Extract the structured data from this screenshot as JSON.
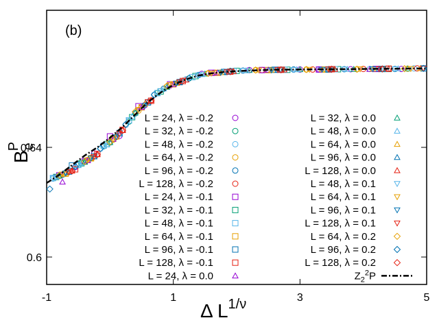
{
  "chart_data": {
    "type": "scatter",
    "panel_label": "(b)",
    "xlabel": "Δ L",
    "xlabel_sup": "1/ν",
    "ylabel": "B",
    "ylabel_sub": "e",
    "ylabel_sup": "P",
    "xlim": [
      -1,
      5
    ],
    "ylim": [
      0.59,
      0.69
    ],
    "x_ticks": [
      -1,
      1,
      3,
      5
    ],
    "x_tick_labels": [
      "-1",
      "1",
      "3",
      "5"
    ],
    "y_ticks": [
      0.6,
      0.64
    ],
    "y_tick_labels": [
      "0.6",
      "0.64"
    ],
    "grid": false,
    "legend_placement": "lower-right",
    "colors": {
      "purple": "#9400d3",
      "green": "#009e73",
      "cyan": "#56b4e9",
      "orange": "#e69f00",
      "blue": "#0072b2",
      "red": "#e51e10"
    },
    "series": [
      {
        "name": "L = 24, λ = -0.2",
        "marker": "circle",
        "color": "#9400d3",
        "x": [
          -0.85,
          -0.55,
          -0.25,
          0.15,
          0.55,
          0.95,
          1.45,
          2.2,
          3.0,
          3.8,
          4.6
        ],
        "y": [
          0.6292,
          0.6328,
          0.6378,
          0.6442,
          0.6554,
          0.6626,
          0.6668,
          0.6682,
          0.6684,
          0.6685,
          0.6686
        ]
      },
      {
        "name": "L = 32, λ = -0.2",
        "marker": "circle",
        "color": "#009e73",
        "x": [
          -0.8,
          -0.45,
          -0.1,
          0.3,
          0.75,
          1.25,
          1.9,
          2.7,
          3.5,
          4.3
        ],
        "y": [
          0.6296,
          0.6342,
          0.6404,
          0.6494,
          0.6598,
          0.6652,
          0.6678,
          0.6683,
          0.6685,
          0.6686
        ]
      },
      {
        "name": "L = 48, λ = -0.2",
        "marker": "circle",
        "color": "#56b4e9",
        "x": [
          -0.9,
          -0.5,
          -0.15,
          0.25,
          0.7,
          1.2,
          1.8,
          2.5,
          3.3,
          4.1,
          4.8
        ],
        "y": [
          0.6286,
          0.6335,
          0.6395,
          0.6482,
          0.6592,
          0.6648,
          0.6676,
          0.6682,
          0.6684,
          0.6686,
          0.6688
        ]
      },
      {
        "name": "L = 64, λ = -0.2",
        "marker": "circle",
        "color": "#e69f00",
        "x": [
          -0.7,
          -0.35,
          0.05,
          0.45,
          0.9,
          1.55,
          2.3,
          3.1,
          3.9,
          4.7
        ],
        "y": [
          0.6306,
          0.6354,
          0.6428,
          0.6534,
          0.6622,
          0.667,
          0.6682,
          0.6684,
          0.6685,
          0.6687
        ]
      },
      {
        "name": "L = 96, λ = -0.2",
        "marker": "circle",
        "color": "#0072b2",
        "x": [
          -0.75,
          -0.4,
          0.0,
          0.4,
          0.85,
          1.4,
          2.1,
          2.9,
          3.7,
          4.5
        ],
        "y": [
          0.63,
          0.6348,
          0.6418,
          0.6524,
          0.6614,
          0.6664,
          0.668,
          0.6684,
          0.6685,
          0.6686
        ]
      },
      {
        "name": "L = 128, λ = -0.2",
        "marker": "circle",
        "color": "#e51e10",
        "x": [
          -0.65,
          -0.3,
          0.1,
          0.5,
          1.0,
          1.65,
          2.4,
          3.2,
          4.0,
          4.85
        ],
        "y": [
          0.631,
          0.6362,
          0.6438,
          0.6546,
          0.663,
          0.6672,
          0.6682,
          0.6684,
          0.6686,
          0.6688
        ]
      },
      {
        "name": "L = 24, λ = -0.1",
        "marker": "square",
        "color": "#9400d3",
        "x": [
          -0.8,
          -0.4,
          0.0,
          0.45,
          0.95,
          1.6,
          2.4,
          3.3,
          4.2
        ],
        "y": [
          0.6298,
          0.635,
          0.644,
          0.655,
          0.663,
          0.6672,
          0.6682,
          0.6684,
          0.6686
        ]
      },
      {
        "name": "L = 32, λ = -0.1",
        "marker": "square",
        "color": "#009e73",
        "x": [
          -0.85,
          -0.45,
          -0.05,
          0.35,
          0.8,
          1.35,
          2.0,
          2.8,
          3.6,
          4.4
        ],
        "y": [
          0.6292,
          0.6342,
          0.6412,
          0.651,
          0.6604,
          0.666,
          0.6679,
          0.6683,
          0.6685,
          0.6686
        ]
      },
      {
        "name": "L = 48, λ = -0.1",
        "marker": "square",
        "color": "#56b4e9",
        "x": [
          -0.9,
          -0.5,
          -0.1,
          0.3,
          0.75,
          1.3,
          1.95,
          2.75,
          3.55,
          4.35
        ],
        "y": [
          0.6288,
          0.6336,
          0.6406,
          0.6498,
          0.6598,
          0.6656,
          0.6678,
          0.6683,
          0.6685,
          0.6686
        ]
      },
      {
        "name": "L = 64, λ = -0.1",
        "marker": "square",
        "color": "#e69f00",
        "x": [
          -0.7,
          -0.3,
          0.05,
          0.5,
          1.0,
          1.7,
          2.5,
          3.4,
          4.3
        ],
        "y": [
          0.6304,
          0.636,
          0.6432,
          0.6546,
          0.663,
          0.6672,
          0.6682,
          0.6684,
          0.6686
        ]
      },
      {
        "name": "L = 96, λ = -0.1",
        "marker": "square",
        "color": "#0072b2",
        "x": [
          -0.6,
          -0.25,
          0.15,
          0.6,
          1.1,
          1.8,
          2.6,
          3.45,
          4.3,
          4.95
        ],
        "y": [
          0.6334,
          0.6368,
          0.6452,
          0.6564,
          0.6638,
          0.6675,
          0.6683,
          0.6684,
          0.6686,
          0.6688
        ]
      },
      {
        "name": "L = 128, λ = -0.1",
        "marker": "square",
        "color": "#e51e10",
        "x": [
          -0.55,
          -0.2,
          0.2,
          0.65,
          1.15,
          1.9,
          2.7,
          3.5,
          4.4
        ],
        "y": [
          0.632,
          0.6376,
          0.6464,
          0.657,
          0.6642,
          0.6676,
          0.6683,
          0.6685,
          0.6687
        ]
      },
      {
        "name": "L = 24, λ = 0.0",
        "marker": "triangle-up",
        "color": "#9400d3",
        "x": [
          -0.75,
          -0.35,
          0.05,
          0.5,
          1.0,
          1.7,
          2.5,
          3.3,
          4.1
        ],
        "y": [
          0.6274,
          0.6352,
          0.643,
          0.6546,
          0.663,
          0.6672,
          0.6682,
          0.6684,
          0.6685
        ]
      },
      {
        "name": "L = 32, λ = 0.0",
        "marker": "triangle-up",
        "color": "#009e73",
        "x": [
          -0.8,
          -0.4,
          0.0,
          0.4,
          0.9,
          1.5,
          2.2,
          3.0,
          3.85,
          4.7
        ],
        "y": [
          0.6296,
          0.6346,
          0.6418,
          0.6526,
          0.662,
          0.6668,
          0.6681,
          0.6684,
          0.6685,
          0.6687
        ]
      },
      {
        "name": "L = 48, λ = 0.0",
        "marker": "triangle-up",
        "color": "#56b4e9",
        "x": [
          -0.85,
          -0.45,
          -0.05,
          0.35,
          0.85,
          1.45,
          2.15,
          2.95,
          3.75,
          4.55
        ],
        "y": [
          0.6292,
          0.6342,
          0.641,
          0.6512,
          0.6614,
          0.6666,
          0.668,
          0.6684,
          0.6685,
          0.6687
        ]
      },
      {
        "name": "L = 64, λ = 0.0",
        "marker": "triangle-up",
        "color": "#e69f00",
        "x": [
          -0.7,
          -0.3,
          0.1,
          0.55,
          1.05,
          1.75,
          2.55,
          3.35,
          4.15,
          4.9
        ],
        "y": [
          0.6306,
          0.636,
          0.6438,
          0.6558,
          0.6634,
          0.6673,
          0.6682,
          0.6684,
          0.6686,
          0.6688
        ]
      },
      {
        "name": "L = 96, λ = 0.0",
        "marker": "triangle-up",
        "color": "#0072b2",
        "x": [
          -0.65,
          -0.25,
          0.15,
          0.6,
          1.1,
          1.85,
          2.65,
          3.45,
          4.25
        ],
        "y": [
          0.631,
          0.6366,
          0.645,
          0.6566,
          0.6638,
          0.6675,
          0.6683,
          0.6685,
          0.6686
        ]
      },
      {
        "name": "L = 128, λ = 0.0",
        "marker": "triangle-up",
        "color": "#e51e10",
        "x": [
          -0.6,
          -0.2,
          0.2,
          0.65,
          1.2,
          1.95,
          2.75,
          3.55,
          4.4
        ],
        "y": [
          0.6314,
          0.6374,
          0.6462,
          0.6572,
          0.6646,
          0.6677,
          0.6683,
          0.6685,
          0.6687
        ]
      },
      {
        "name": "L = 48, λ = 0.1",
        "marker": "triangle-down",
        "color": "#56b4e9",
        "x": [
          -0.9,
          -0.5,
          -0.1,
          0.3,
          0.8,
          1.4,
          2.1,
          2.9,
          3.7,
          4.5
        ],
        "y": [
          0.6288,
          0.6336,
          0.6404,
          0.65,
          0.6606,
          0.6664,
          0.668,
          0.6683,
          0.6685,
          0.6686
        ]
      },
      {
        "name": "L = 64, λ = 0.1",
        "marker": "triangle-down",
        "color": "#e69f00",
        "x": [
          -0.75,
          -0.35,
          0.05,
          0.45,
          0.95,
          1.6,
          2.35,
          3.15,
          3.95,
          4.75
        ],
        "y": [
          0.6302,
          0.6354,
          0.643,
          0.6538,
          0.6628,
          0.667,
          0.6682,
          0.6684,
          0.6686,
          0.6687
        ]
      },
      {
        "name": "L = 96, λ = 0.1",
        "marker": "triangle-down",
        "color": "#0072b2",
        "x": [
          -0.7,
          -0.3,
          0.1,
          0.55,
          1.05,
          1.75,
          2.55,
          3.35,
          4.15
        ],
        "y": [
          0.6306,
          0.636,
          0.6438,
          0.6552,
          0.6634,
          0.6673,
          0.6682,
          0.6684,
          0.6686
        ]
      },
      {
        "name": "L = 128, λ = 0.1",
        "marker": "triangle-down",
        "color": "#e51e10",
        "x": [
          -0.65,
          -0.25,
          0.15,
          0.6,
          1.1,
          1.85,
          2.65,
          3.45,
          4.25,
          4.95
        ],
        "y": [
          0.631,
          0.6366,
          0.645,
          0.6566,
          0.6638,
          0.6675,
          0.6683,
          0.6685,
          0.6686,
          0.6688
        ]
      },
      {
        "name": "L = 64, λ = 0.2",
        "marker": "diamond",
        "color": "#e69f00",
        "x": [
          -0.8,
          -0.4,
          0.0,
          0.4,
          0.9,
          1.55,
          2.3,
          3.1,
          3.9,
          4.65
        ],
        "y": [
          0.6298,
          0.6348,
          0.642,
          0.653,
          0.6624,
          0.667,
          0.6682,
          0.6684,
          0.6685,
          0.6687
        ]
      },
      {
        "name": "L = 96, λ = 0.2",
        "marker": "diamond",
        "color": "#0072b2",
        "x": [
          -0.95,
          -0.55,
          -0.15,
          0.25,
          0.7,
          1.25,
          1.9,
          2.7,
          3.5,
          4.3,
          4.95
        ],
        "y": [
          0.6248,
          0.633,
          0.6396,
          0.6484,
          0.6592,
          0.6652,
          0.6678,
          0.6683,
          0.6685,
          0.6686,
          0.6688
        ]
      },
      {
        "name": "L = 128, λ = 0.2",
        "marker": "diamond",
        "color": "#e51e10",
        "x": [
          -0.6,
          -0.2,
          0.2,
          0.65,
          1.15,
          1.9,
          2.7,
          3.5,
          4.3
        ],
        "y": [
          0.6314,
          0.6374,
          0.6462,
          0.657,
          0.6642,
          0.6676,
          0.6683,
          0.6685,
          0.6686
        ]
      }
    ],
    "curve": {
      "name": "Z",
      "name_sub": "2",
      "name_sup": "2",
      "name_tail": "P",
      "style": "dash-dot",
      "color": "#000000",
      "x": [
        -1.0,
        -0.8,
        -0.6,
        -0.4,
        -0.2,
        0.0,
        0.2,
        0.4,
        0.6,
        0.8,
        1.0,
        1.2,
        1.4,
        1.6,
        1.8,
        2.0,
        2.3,
        2.6,
        3.0,
        3.5,
        4.0,
        4.5,
        5.0
      ],
      "y": [
        0.627,
        0.63,
        0.6335,
        0.637,
        0.64,
        0.6435,
        0.6475,
        0.652,
        0.6565,
        0.66,
        0.6628,
        0.6648,
        0.6662,
        0.667,
        0.6675,
        0.6678,
        0.6681,
        0.6683,
        0.6684,
        0.6685,
        0.6686,
        0.6687,
        0.6688
      ]
    }
  }
}
